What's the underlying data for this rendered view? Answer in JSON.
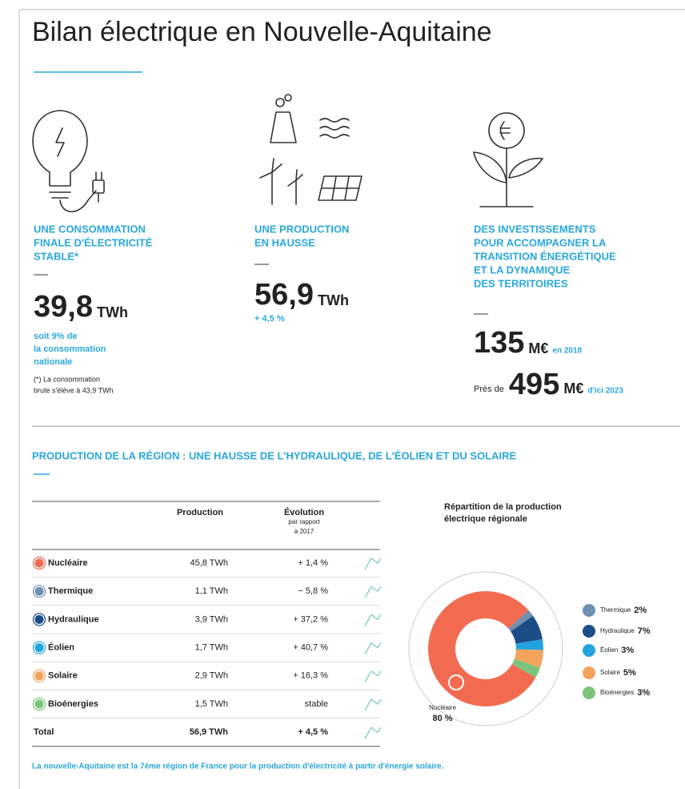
{
  "header": {
    "title": "Bilan électrique en Nouvelle-Aquitaine"
  },
  "kpis": [
    {
      "heading": [
        "UNE CONSOMMATION",
        "FINALE D'ÉLECTRICITÉ",
        "STABLE*"
      ],
      "value": "39,8",
      "unit": "TWh",
      "note": [
        "soit 9% de",
        "la consommation",
        "nationale"
      ],
      "footnote": [
        "(*) La consommation",
        "brute s'élève à 43,9 TWh"
      ]
    },
    {
      "heading": [
        "UNE PRODUCTION",
        "EN HAUSSE"
      ],
      "value": "56,9",
      "unit": "TWh",
      "note": [
        "+ 4,5 %"
      ]
    },
    {
      "heading": [
        "DES INVESTISSEMENTS",
        "POUR ACCOMPAGNER LA",
        "TRANSITION ÉNERGÉTIQUE",
        "ET LA DYNAMIQUE",
        "DES TERRITOIRES"
      ],
      "value": "135",
      "unit": "M€",
      "note": [
        "en 2018"
      ],
      "second": {
        "prefix": "Près de",
        "value": "495",
        "unit": "M€",
        "note": "d'ici 2023"
      }
    }
  ],
  "section": {
    "title": "PRODUCTION DE LA RÉGION : UNE HAUSSE DE L'HYDRAULIQUE, DE L'ÉOLIEN ET DU SOLAIRE"
  },
  "table": {
    "headers": {
      "production": "Production",
      "evolution": [
        "Évolution",
        "par rapport",
        "à 2017"
      ]
    },
    "rows": [
      [
        "Nucléaire",
        "45,8 TWh",
        "+ 1,4 %"
      ],
      [
        "Thermique",
        "1,1 TWh",
        "− 5,8 %"
      ],
      [
        "Hydraulique",
        "3,9 TWh",
        "+ 37,2 %"
      ],
      [
        "Éolien",
        "1,7 TWh",
        "+ 40,7 %"
      ],
      [
        "Solaire",
        "2,9 TWh",
        "+ 16,3 %"
      ],
      [
        "Bioénergies",
        "1,5 TWh",
        "stable"
      ]
    ],
    "total": [
      "Total",
      "56,9 TWh",
      "+ 4,5 %"
    ]
  },
  "chart_data": {
    "type": "pie",
    "title": [
      "Répartition de la production",
      "électrique régionale"
    ],
    "categories": [
      "Thermique",
      "Hydraulique",
      "Éolien",
      "Solaire",
      "Bioénergies",
      "Nucléaire"
    ],
    "values": [
      2,
      7,
      3,
      5,
      3,
      80
    ],
    "value_labels": [
      "2%",
      "7%",
      "3%",
      "5%",
      "3%",
      "80 %"
    ],
    "colors": [
      "#6f8fb1",
      "#1d4d89",
      "#22a3df",
      "#f4a35d",
      "#7cc47b",
      "#f26b50"
    ]
  },
  "footer": "La nouvelle-Aquitaine est la 7ème région de France pour la production d'électricité à partir d'énergie solaire."
}
